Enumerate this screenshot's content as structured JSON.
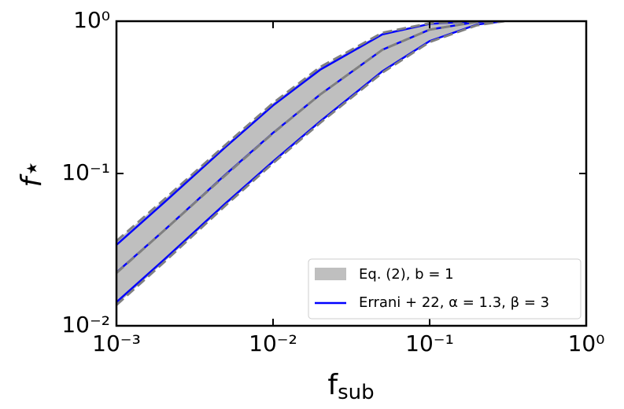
{
  "chart_data": {
    "type": "line",
    "x_label": {
      "main": "f",
      "sub": "sub"
    },
    "y_label": "f⋆",
    "log_x": true,
    "log_y": true,
    "xlim": [
      0.001,
      1
    ],
    "ylim": [
      0.01,
      1
    ],
    "xticks": [
      {
        "value": 0.001,
        "label": "10⁻³"
      },
      {
        "value": 0.01,
        "label": "10⁻²"
      },
      {
        "value": 0.1,
        "label": "10⁻¹"
      },
      {
        "value": 1,
        "label": "10⁰"
      }
    ],
    "yticks": [
      {
        "value": 0.01,
        "label": "10⁻²"
      },
      {
        "value": 0.1,
        "label": "10⁻¹"
      },
      {
        "value": 1,
        "label": "10⁰"
      }
    ],
    "x": [
      0.001,
      0.002,
      0.005,
      0.01,
      0.02,
      0.05,
      0.1,
      0.2,
      0.3
    ],
    "band": {
      "name": "Eq. (2), b = 1",
      "color": "#bfbfbf",
      "upper": [
        0.036,
        0.067,
        0.155,
        0.29,
        0.5,
        0.84,
        0.97,
        1.0,
        1.0
      ],
      "lower": [
        0.0137,
        0.026,
        0.062,
        0.117,
        0.215,
        0.46,
        0.73,
        0.94,
        1.0
      ]
    },
    "dashed": {
      "color": "#808080",
      "lines": [
        [
          0.036,
          0.067,
          0.155,
          0.29,
          0.5,
          0.84,
          0.97,
          1.0,
          1.0
        ],
        [
          0.0222,
          0.042,
          0.098,
          0.184,
          0.33,
          0.65,
          0.88,
          0.99,
          1.0
        ],
        [
          0.0137,
          0.026,
          0.062,
          0.117,
          0.215,
          0.46,
          0.73,
          0.94,
          1.0
        ]
      ]
    },
    "series": [
      {
        "name": "Errani + 22, α = 1.3, β = 3",
        "color": "#0000ff",
        "values": [
          0.034,
          0.064,
          0.15,
          0.28,
          0.48,
          0.82,
          0.96,
          1.0,
          1.0
        ]
      },
      {
        "color": "#0000ff",
        "values": [
          0.0224,
          0.042,
          0.099,
          0.185,
          0.33,
          0.65,
          0.88,
          0.99,
          1.0
        ]
      },
      {
        "color": "#0000ff",
        "values": [
          0.0143,
          0.027,
          0.064,
          0.12,
          0.22,
          0.47,
          0.74,
          0.95,
          1.0
        ]
      }
    ],
    "legend": "lower right"
  }
}
